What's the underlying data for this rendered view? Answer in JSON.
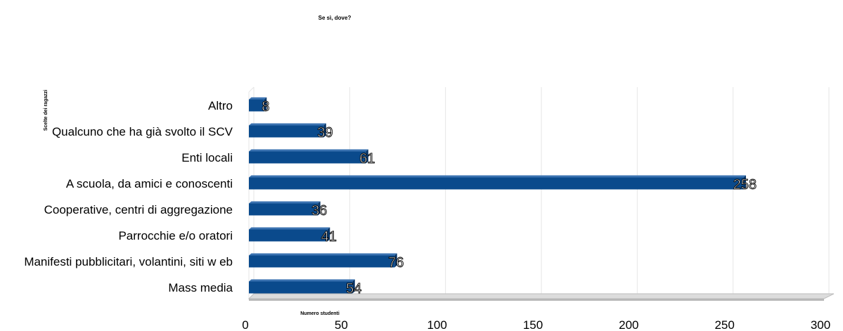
{
  "chart_data": {
    "type": "bar",
    "orientation": "horizontal",
    "title": "Se sì, dove?",
    "xlabel": "Numero studenti",
    "ylabel": "Scelte dei ragazzi",
    "categories": [
      "Altro",
      "Qualcuno che ha già svolto il SCV",
      "Enti locali",
      "A scuola, da amici e conoscenti",
      "Cooperative, centri di aggregazione",
      "Parrocchie e/o oratori",
      "Manifesti pubblicitari, volantini, siti w eb",
      "Mass media"
    ],
    "values": [
      8,
      39,
      61,
      258,
      36,
      41,
      76,
      54
    ],
    "xlim": [
      0,
      300
    ],
    "xticks": [
      0,
      50,
      100,
      150,
      200,
      250,
      300
    ],
    "grid": true,
    "legend": "none",
    "bar_color": "#0a4a8c"
  }
}
